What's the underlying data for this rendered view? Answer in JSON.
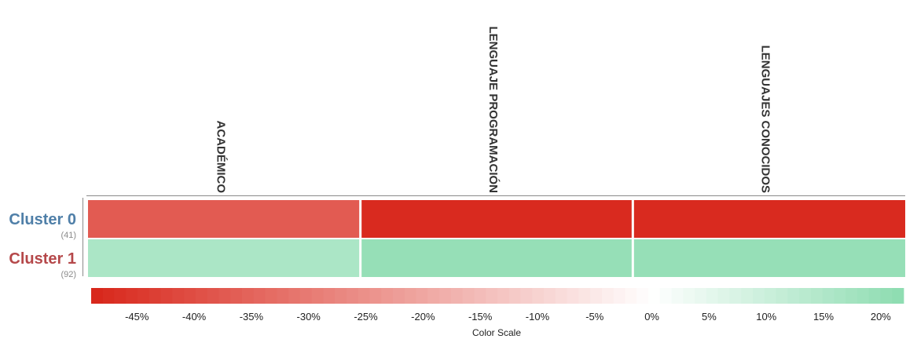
{
  "chart_data": {
    "type": "heatmap",
    "columns": [
      "ACADÉMICO",
      "LENGUAJE PROGRAMACIÓN",
      "LENGUAJES CONOCIDOS"
    ],
    "rows": [
      {
        "label": "Cluster 0",
        "count": "(41)",
        "color": "#4f7fa8",
        "values": [
          -37,
          -48,
          -48
        ]
      },
      {
        "label": "Cluster 1",
        "count": "(92)",
        "color": "#b5484a",
        "values": [
          16,
          20,
          20
        ]
      }
    ],
    "color_scale": {
      "title": "Color Scale",
      "min": -49,
      "max": 22,
      "negative_color": "#d8261a",
      "zero_color": "#ffffff",
      "positive_color": "#8cdcb0",
      "ticks": [
        {
          "value": -45,
          "label": "-45%"
        },
        {
          "value": -40,
          "label": "-40%"
        },
        {
          "value": -35,
          "label": "-35%"
        },
        {
          "value": -30,
          "label": "-30%"
        },
        {
          "value": -25,
          "label": "-25%"
        },
        {
          "value": -20,
          "label": "-20%"
        },
        {
          "value": -15,
          "label": "-15%"
        },
        {
          "value": -10,
          "label": "-10%"
        },
        {
          "value": -5,
          "label": "-5%"
        },
        {
          "value": 0,
          "label": "0%"
        },
        {
          "value": 5,
          "label": "5%"
        },
        {
          "value": 10,
          "label": "10%"
        },
        {
          "value": 15,
          "label": "15%"
        },
        {
          "value": 20,
          "label": "20%"
        }
      ]
    }
  }
}
